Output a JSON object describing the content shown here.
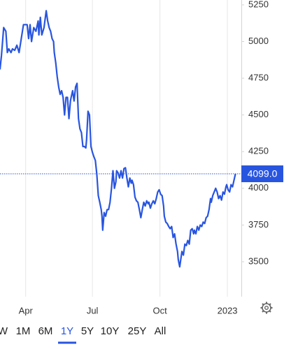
{
  "chart_data": {
    "type": "line",
    "color": "#2855e0",
    "x": [
      55,
      57,
      60,
      63,
      65,
      67,
      70,
      72,
      75,
      78,
      81,
      84,
      87,
      89,
      92,
      94,
      96,
      98,
      101,
      104,
      107,
      108,
      110,
      112,
      115,
      118,
      120,
      122,
      124,
      126,
      128,
      129,
      131,
      133,
      135,
      137,
      139,
      141,
      143,
      145,
      147,
      149,
      151,
      152,
      154,
      156,
      158,
      160,
      162,
      164,
      166,
      168,
      170,
      172,
      173,
      175,
      177,
      179,
      181,
      183,
      185,
      187,
      189,
      191,
      193,
      194,
      195,
      197,
      199,
      201,
      203,
      205,
      207,
      209,
      211,
      213,
      214,
      216,
      218,
      220,
      222,
      224,
      226,
      228,
      230,
      232,
      234,
      235,
      237,
      239,
      241,
      243,
      245,
      247,
      249,
      251,
      253,
      255,
      257,
      258,
      260,
      262,
      264,
      266,
      268,
      270,
      272,
      274,
      276,
      278,
      279,
      281,
      283,
      285,
      287,
      289,
      291,
      293,
      295,
      297,
      298,
      300,
      301,
      303,
      305,
      307,
      309,
      311,
      313,
      315,
      317,
      319,
      320,
      322,
      324,
      326,
      328,
      330,
      332,
      334,
      336,
      338,
      340,
      342,
      343,
      345,
      347,
      349,
      351,
      353,
      355,
      357,
      359,
      361,
      363,
      364,
      366,
      368,
      370,
      372,
      374,
      376
    ],
    "values": [
      4810,
      4905,
      5095,
      5070,
      4925,
      4950,
      4925,
      4950,
      4940,
      4975,
      4925,
      5020,
      5115,
      5115,
      5115,
      5020,
      5115,
      5000,
      5095,
      5070,
      5140,
      5045,
      5165,
      5045,
      5095,
      5210,
      5140,
      5095,
      5070,
      5020,
      5000,
      4925,
      4855,
      4760,
      4690,
      4640,
      4665,
      4620,
      4500,
      4620,
      4620,
      4475,
      4595,
      4620,
      4665,
      4595,
      4690,
      4715,
      4475,
      4405,
      4380,
      4285,
      4285,
      4275,
      4330,
      4525,
      4500,
      4285,
      4245,
      4215,
      4190,
      4095,
      3950,
      3905,
      3855,
      3810,
      3715,
      3835,
      3810,
      3855,
      3855,
      3905,
      4000,
      4120,
      4000,
      4045,
      4120,
      4105,
      4070,
      4120,
      4070,
      4135,
      4140,
      4070,
      4010,
      4070,
      4035,
      4055,
      4025,
      3940,
      3915,
      3905,
      3855,
      3800,
      3855,
      3905,
      3880,
      3915,
      3895,
      3905,
      3865,
      3895,
      3915,
      3895,
      3930,
      3975,
      3990,
      3960,
      3950,
      3880,
      3810,
      3770,
      3760,
      3740,
      3725,
      3740,
      3665,
      3690,
      3620,
      3570,
      3515,
      3465,
      3500,
      3570,
      3545,
      3620,
      3610,
      3645,
      3620,
      3715,
      3725,
      3690,
      3715,
      3690,
      3740,
      3715,
      3750,
      3740,
      3770,
      3760,
      3800,
      3810,
      3855,
      3930,
      3905,
      3950,
      3975,
      4000,
      3975,
      3930,
      3950,
      3920,
      3975,
      3960,
      4010,
      4025,
      3990,
      3975,
      4025,
      4010,
      4055,
      4099
    ],
    "xlim": [
      55,
      384
    ],
    "xticks": [
      {
        "value": 90,
        "label": "Apr"
      },
      {
        "value": 181,
        "label": "Jul"
      },
      {
        "value": 273,
        "label": "Oct"
      },
      {
        "value": 365,
        "label": "2023"
      }
    ],
    "ylim": [
      3262,
      5283
    ],
    "yticks": [
      3500,
      3750,
      4000,
      4250,
      4500,
      4750,
      5000,
      5250
    ],
    "last_price": {
      "value": 4099,
      "label": "4099.0"
    },
    "range_buttons": [
      "W",
      "1M",
      "6M",
      "1Y",
      "5Y",
      "10Y",
      "25Y",
      "All"
    ],
    "selected_range": "1Y"
  }
}
